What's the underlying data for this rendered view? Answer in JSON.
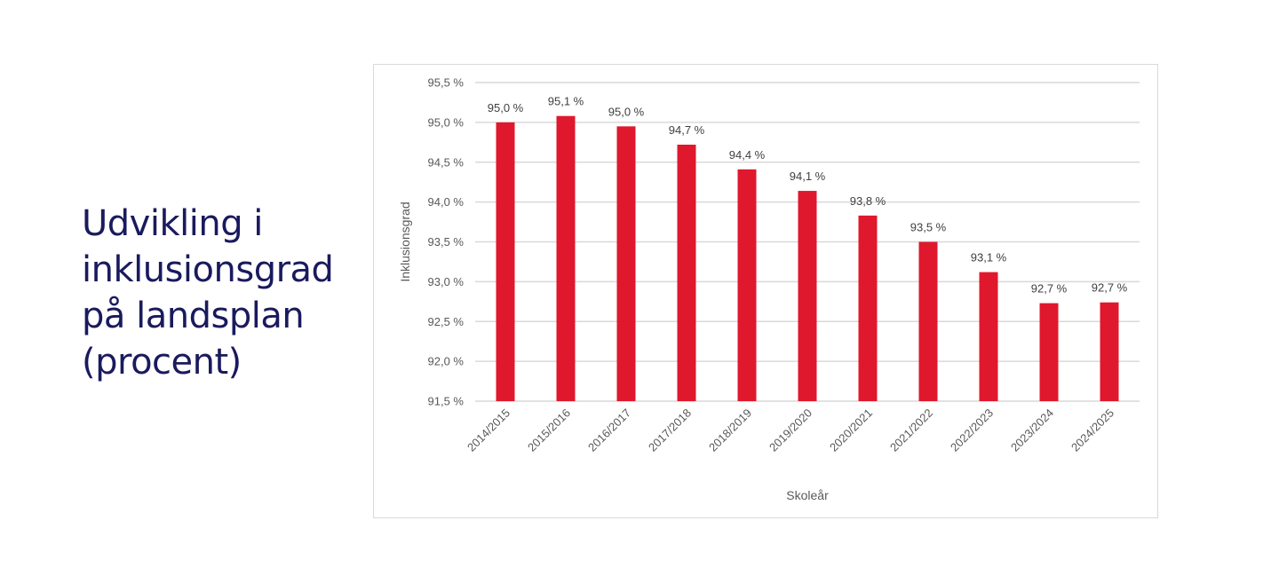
{
  "heading": {
    "lines": [
      "Udvikling i",
      "inklusionsgrad",
      "på landsplan",
      "(procent)"
    ]
  },
  "chart_data": {
    "type": "bar",
    "categories": [
      "2014/2015",
      "2015/2016",
      "2016/2017",
      "2017/2018",
      "2018/2019",
      "2019/2020",
      "2020/2021",
      "2021/2022",
      "2022/2023",
      "2023/2024",
      "2024/2025"
    ],
    "values": [
      95.0,
      95.08,
      94.95,
      94.72,
      94.41,
      94.14,
      93.83,
      93.5,
      93.12,
      92.73,
      92.74
    ],
    "data_labels": [
      "95,0 %",
      "95,1 %",
      "95,0 %",
      "94,7 %",
      "94,4 %",
      "94,1 %",
      "93,8 %",
      "93,5 %",
      "93,1 %",
      "92,7 %",
      "92,7 %"
    ],
    "yticks": [
      91.5,
      92.0,
      92.5,
      93.0,
      93.5,
      94.0,
      94.5,
      95.0,
      95.5
    ],
    "ytick_labels": [
      "91,5 %",
      "92,0 %",
      "92,5 %",
      "93,0 %",
      "93,5 %",
      "94,0 %",
      "94,5 %",
      "95,0 %",
      "95,5 %"
    ],
    "ylim": [
      91.5,
      95.5
    ],
    "xlabel": "Skoleår",
    "ylabel": "Inklusionsgrad",
    "grid": true,
    "bar_color": "#e0182d",
    "grid_color": "#d9d9d9"
  }
}
